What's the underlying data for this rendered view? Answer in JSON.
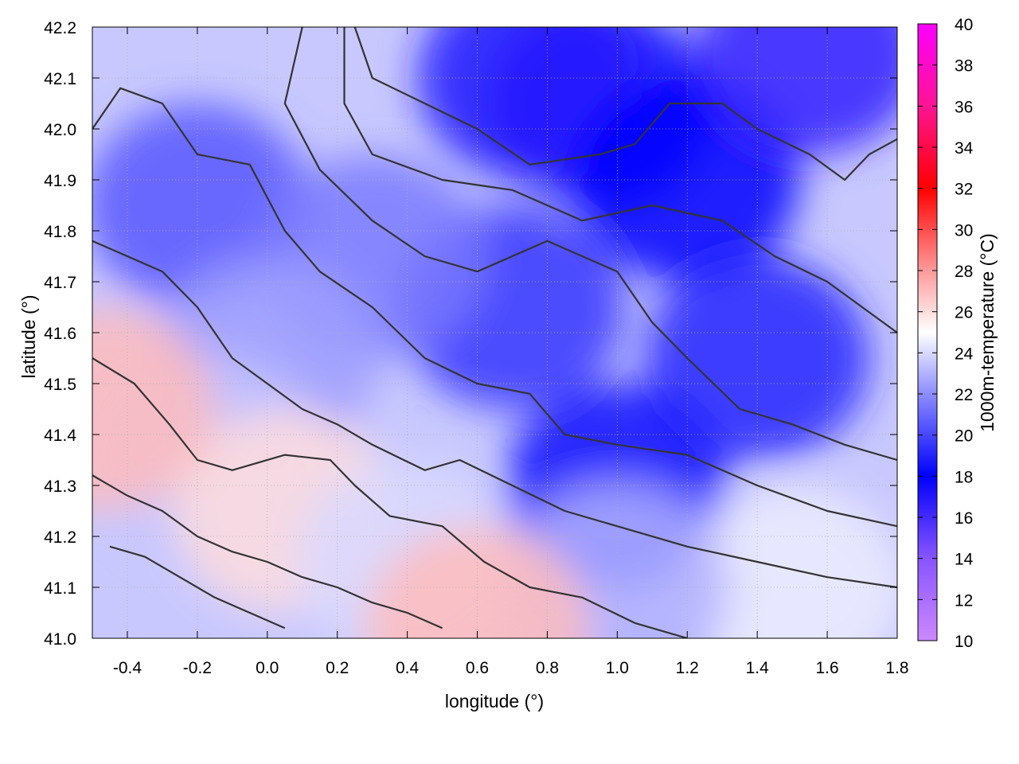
{
  "chart_data": {
    "type": "heatmap",
    "xlabel": "longitude (°)",
    "ylabel": "latitude (°)",
    "colorbar_label": "1000m-temperature (°C)",
    "xlim": [
      -0.5,
      1.8
    ],
    "ylim": [
      41.0,
      42.2
    ],
    "clim": [
      10,
      40
    ],
    "x_ticks": [
      -0.4,
      -0.2,
      0.0,
      0.2,
      0.4,
      0.6,
      0.8,
      1.0,
      1.2,
      1.4,
      1.6,
      1.8
    ],
    "x_tick_labels": [
      "-0.4",
      "-0.2",
      "0.0",
      "0.2",
      "0.4",
      "0.6",
      "0.8",
      "1.0",
      "1.2",
      "1.4",
      "1.6",
      "1.8"
    ],
    "y_ticks": [
      41.0,
      41.1,
      41.2,
      41.3,
      41.4,
      41.5,
      41.6,
      41.7,
      41.8,
      41.9,
      42.0,
      42.1,
      42.2
    ],
    "y_tick_labels": [
      "41.0",
      "41.1",
      "41.2",
      "41.3",
      "41.4",
      "41.5",
      "41.6",
      "41.7",
      "41.8",
      "41.9",
      "42.0",
      "42.1",
      "42.2"
    ],
    "cb_ticks": [
      10,
      12,
      14,
      16,
      18,
      20,
      22,
      24,
      26,
      28,
      30,
      32,
      34,
      36,
      38,
      40
    ],
    "cb_tick_labels": [
      "10",
      "12",
      "14",
      "16",
      "18",
      "20",
      "22",
      "24",
      "26",
      "28",
      "30",
      "32",
      "34",
      "36",
      "38",
      "40"
    ],
    "palette": [
      {
        "v": 10,
        "color": "#cc88ff"
      },
      {
        "v": 14,
        "color": "#8855ff"
      },
      {
        "v": 18,
        "color": "#0000ff"
      },
      {
        "v": 22,
        "color": "#8c8cff"
      },
      {
        "v": 25,
        "color": "#ffffff"
      },
      {
        "v": 28,
        "color": "#ff9a9a"
      },
      {
        "v": 32,
        "color": "#ff0000"
      },
      {
        "v": 36,
        "color": "#ff1493"
      },
      {
        "v": 40,
        "color": "#ff00ff"
      }
    ],
    "field_regions": [
      {
        "lon": 0.95,
        "lat": 42.05,
        "value": 17.5
      },
      {
        "lon": 0.75,
        "lat": 42.1,
        "value": 17.0
      },
      {
        "lon": 1.2,
        "lat": 41.9,
        "value": 18.0
      },
      {
        "lon": 1.55,
        "lat": 42.15,
        "value": 16.5
      },
      {
        "lon": 1.4,
        "lat": 41.55,
        "value": 19.0
      },
      {
        "lon": 0.7,
        "lat": 41.65,
        "value": 19.5
      },
      {
        "lon": 1.0,
        "lat": 41.3,
        "value": 18.5
      },
      {
        "lon": -0.2,
        "lat": 41.85,
        "value": 20.5
      },
      {
        "lon": 0.3,
        "lat": 41.75,
        "value": 21.5
      },
      {
        "lon": 0.0,
        "lat": 41.55,
        "value": 22.5
      },
      {
        "lon": -0.15,
        "lat": 41.35,
        "value": 23.5
      },
      {
        "lon": 0.05,
        "lat": 41.25,
        "value": 26.0
      },
      {
        "lon": 0.4,
        "lat": 41.15,
        "value": 24.0
      },
      {
        "lon": 1.5,
        "lat": 41.1,
        "value": 24.5
      },
      {
        "lon": 1.0,
        "lat": 41.1,
        "value": 23.0
      },
      {
        "lon": -0.47,
        "lat": 41.45,
        "value": 27.0
      },
      {
        "lon": 0.6,
        "lat": 41.02,
        "value": 27.0
      }
    ],
    "contours": [
      {
        "level": 18,
        "points": [
          [
            0.25,
            42.2
          ],
          [
            0.3,
            42.1
          ],
          [
            0.45,
            42.05
          ],
          [
            0.6,
            42.0
          ],
          [
            0.75,
            41.93
          ],
          [
            0.95,
            41.95
          ],
          [
            1.05,
            41.97
          ],
          [
            1.15,
            42.05
          ],
          [
            1.3,
            42.05
          ],
          [
            1.4,
            42.0
          ],
          [
            1.55,
            41.95
          ],
          [
            1.65,
            41.9
          ],
          [
            1.72,
            41.95
          ],
          [
            1.8,
            41.98
          ]
        ]
      },
      {
        "level": 19,
        "points": [
          [
            0.22,
            42.2
          ],
          [
            0.22,
            42.05
          ],
          [
            0.3,
            41.95
          ],
          [
            0.5,
            41.9
          ],
          [
            0.7,
            41.88
          ],
          [
            0.9,
            41.82
          ],
          [
            1.1,
            41.85
          ],
          [
            1.3,
            41.82
          ],
          [
            1.45,
            41.75
          ],
          [
            1.6,
            41.7
          ],
          [
            1.8,
            41.6
          ]
        ]
      },
      {
        "level": 20,
        "points": [
          [
            0.1,
            42.2
          ],
          [
            0.05,
            42.05
          ],
          [
            0.15,
            41.92
          ],
          [
            0.3,
            41.82
          ],
          [
            0.45,
            41.75
          ],
          [
            0.6,
            41.72
          ],
          [
            0.8,
            41.78
          ],
          [
            1.0,
            41.72
          ],
          [
            1.1,
            41.62
          ],
          [
            1.2,
            41.55
          ],
          [
            1.35,
            41.45
          ],
          [
            1.5,
            41.42
          ],
          [
            1.65,
            41.38
          ],
          [
            1.8,
            41.35
          ]
        ]
      },
      {
        "level": 21,
        "points": [
          [
            -0.5,
            42.0
          ],
          [
            -0.42,
            42.08
          ],
          [
            -0.3,
            42.05
          ],
          [
            -0.2,
            41.95
          ],
          [
            -0.05,
            41.93
          ],
          [
            0.05,
            41.8
          ],
          [
            0.15,
            41.72
          ],
          [
            0.3,
            41.65
          ],
          [
            0.45,
            41.55
          ],
          [
            0.6,
            41.5
          ],
          [
            0.75,
            41.48
          ],
          [
            0.85,
            41.4
          ],
          [
            1.0,
            41.38
          ],
          [
            1.2,
            41.36
          ],
          [
            1.4,
            41.3
          ],
          [
            1.6,
            41.25
          ],
          [
            1.8,
            41.22
          ]
        ]
      },
      {
        "level": 22,
        "points": [
          [
            -0.5,
            41.78
          ],
          [
            -0.4,
            41.75
          ],
          [
            -0.3,
            41.72
          ],
          [
            -0.2,
            41.65
          ],
          [
            -0.1,
            41.55
          ],
          [
            0.0,
            41.5
          ],
          [
            0.1,
            41.45
          ],
          [
            0.2,
            41.42
          ],
          [
            0.3,
            41.38
          ],
          [
            0.45,
            41.33
          ],
          [
            0.55,
            41.35
          ],
          [
            0.7,
            41.3
          ],
          [
            0.85,
            41.25
          ],
          [
            1.0,
            41.22
          ],
          [
            1.2,
            41.18
          ],
          [
            1.4,
            41.15
          ],
          [
            1.6,
            41.12
          ],
          [
            1.8,
            41.1
          ]
        ]
      },
      {
        "level": 23,
        "points": [
          [
            -0.5,
            41.55
          ],
          [
            -0.38,
            41.5
          ],
          [
            -0.28,
            41.42
          ],
          [
            -0.2,
            41.35
          ],
          [
            -0.1,
            41.33
          ],
          [
            0.05,
            41.36
          ],
          [
            0.18,
            41.35
          ],
          [
            0.25,
            41.3
          ],
          [
            0.35,
            41.24
          ],
          [
            0.5,
            41.22
          ],
          [
            0.62,
            41.15
          ],
          [
            0.75,
            41.1
          ],
          [
            0.9,
            41.08
          ],
          [
            1.05,
            41.03
          ],
          [
            1.2,
            41.0
          ]
        ]
      },
      {
        "level": 24,
        "points": [
          [
            -0.5,
            41.32
          ],
          [
            -0.4,
            41.28
          ],
          [
            -0.3,
            41.25
          ],
          [
            -0.2,
            41.2
          ],
          [
            -0.1,
            41.17
          ],
          [
            0.0,
            41.15
          ],
          [
            0.1,
            41.12
          ],
          [
            0.2,
            41.1
          ],
          [
            0.3,
            41.07
          ],
          [
            0.4,
            41.05
          ],
          [
            0.5,
            41.02
          ]
        ]
      },
      {
        "level": 25,
        "points": [
          [
            -0.45,
            41.18
          ],
          [
            -0.35,
            41.16
          ],
          [
            -0.25,
            41.12
          ],
          [
            -0.15,
            41.08
          ],
          [
            -0.05,
            41.05
          ],
          [
            0.05,
            41.02
          ]
        ]
      }
    ]
  }
}
